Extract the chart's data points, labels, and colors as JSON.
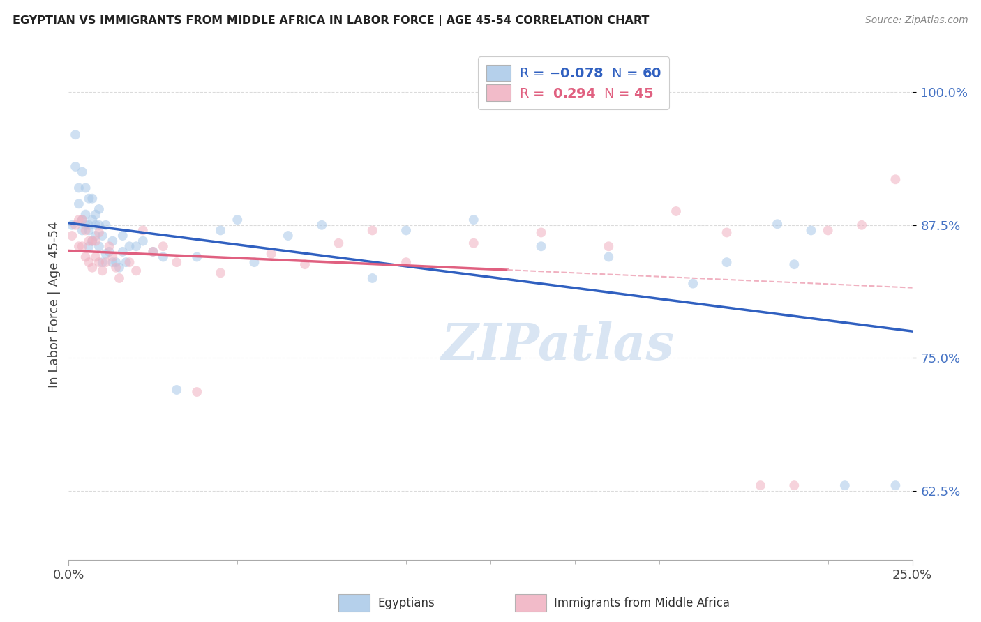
{
  "title": "EGYPTIAN VS IMMIGRANTS FROM MIDDLE AFRICA IN LABOR FORCE | AGE 45-54 CORRELATION CHART",
  "source": "Source: ZipAtlas.com",
  "ylabel": "In Labor Force | Age 45-54",
  "ytick_labels": [
    "62.5%",
    "75.0%",
    "87.5%",
    "100.0%"
  ],
  "ytick_values": [
    0.625,
    0.75,
    0.875,
    1.0
  ],
  "xlim": [
    0.0,
    0.25
  ],
  "ylim": [
    0.56,
    1.04
  ],
  "background_color": "#ffffff",
  "grid_color": "#cccccc",
  "legend_blue_label": "Egyptians",
  "legend_pink_label": "Immigrants from Middle Africa",
  "R_blue": -0.078,
  "N_blue": 60,
  "R_pink": 0.294,
  "N_pink": 45,
  "blue_color": "#a8c8e8",
  "pink_color": "#f0b0c0",
  "blue_line_color": "#3060c0",
  "pink_line_color": "#e06080",
  "dash_line_color": "#f0b0c0",
  "watermark_text": "ZIPatlas",
  "marker_size": 100,
  "alpha_scatter": 0.55,
  "blue_points_x": [
    0.001,
    0.002,
    0.002,
    0.003,
    0.003,
    0.004,
    0.004,
    0.004,
    0.005,
    0.005,
    0.005,
    0.006,
    0.006,
    0.006,
    0.006,
    0.007,
    0.007,
    0.007,
    0.008,
    0.008,
    0.008,
    0.009,
    0.009,
    0.009,
    0.01,
    0.01,
    0.011,
    0.011,
    0.012,
    0.013,
    0.013,
    0.014,
    0.015,
    0.016,
    0.016,
    0.017,
    0.018,
    0.02,
    0.022,
    0.025,
    0.028,
    0.032,
    0.038,
    0.045,
    0.05,
    0.055,
    0.065,
    0.075,
    0.09,
    0.1,
    0.12,
    0.14,
    0.16,
    0.185,
    0.195,
    0.21,
    0.215,
    0.22,
    0.23,
    0.245
  ],
  "blue_points_y": [
    0.875,
    0.93,
    0.96,
    0.895,
    0.91,
    0.87,
    0.88,
    0.925,
    0.875,
    0.885,
    0.91,
    0.855,
    0.875,
    0.9,
    0.87,
    0.86,
    0.88,
    0.9,
    0.865,
    0.875,
    0.885,
    0.855,
    0.875,
    0.89,
    0.84,
    0.865,
    0.848,
    0.875,
    0.85,
    0.84,
    0.86,
    0.84,
    0.835,
    0.85,
    0.865,
    0.84,
    0.855,
    0.855,
    0.86,
    0.85,
    0.845,
    0.72,
    0.845,
    0.87,
    0.88,
    0.84,
    0.865,
    0.875,
    0.825,
    0.87,
    0.88,
    0.855,
    0.845,
    0.82,
    0.84,
    0.876,
    0.838,
    0.87,
    0.63,
    0.63
  ],
  "pink_points_x": [
    0.001,
    0.002,
    0.003,
    0.003,
    0.004,
    0.004,
    0.005,
    0.005,
    0.006,
    0.006,
    0.007,
    0.007,
    0.008,
    0.008,
    0.009,
    0.009,
    0.01,
    0.011,
    0.012,
    0.013,
    0.014,
    0.015,
    0.018,
    0.02,
    0.022,
    0.025,
    0.028,
    0.032,
    0.038,
    0.045,
    0.06,
    0.07,
    0.08,
    0.09,
    0.1,
    0.12,
    0.14,
    0.16,
    0.18,
    0.195,
    0.205,
    0.215,
    0.225,
    0.235,
    0.245
  ],
  "pink_points_y": [
    0.865,
    0.875,
    0.855,
    0.88,
    0.855,
    0.88,
    0.845,
    0.87,
    0.84,
    0.86,
    0.835,
    0.86,
    0.845,
    0.86,
    0.84,
    0.868,
    0.832,
    0.84,
    0.855,
    0.845,
    0.835,
    0.825,
    0.84,
    0.832,
    0.87,
    0.85,
    0.855,
    0.84,
    0.718,
    0.83,
    0.848,
    0.838,
    0.858,
    0.87,
    0.84,
    0.858,
    0.868,
    0.855,
    0.888,
    0.868,
    0.63,
    0.63,
    0.87,
    0.875,
    0.918
  ]
}
